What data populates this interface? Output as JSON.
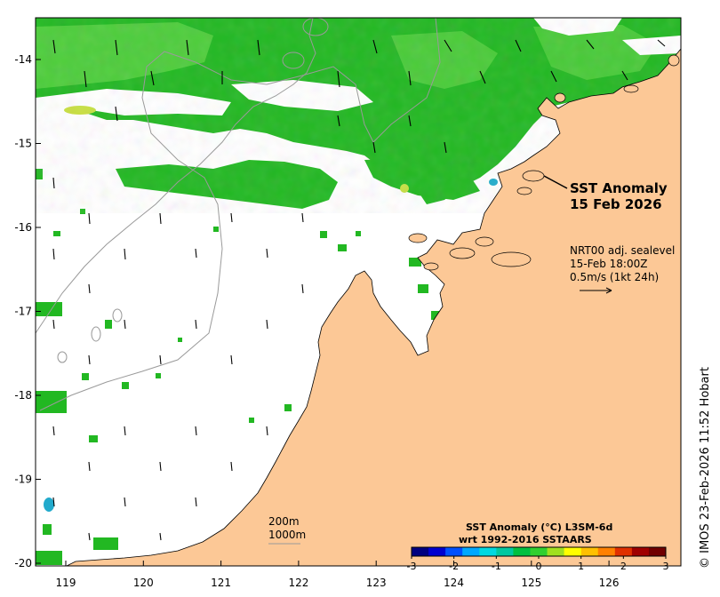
{
  "map": {
    "title_line1": "SST Anomaly",
    "title_line2": "15 Feb 2026",
    "current_info": {
      "line1": "NRT00 adj. sealevel",
      "line2": "15-Feb 18:00Z",
      "line3": "0.5m/s (1kt 24h)"
    },
    "isobaths": {
      "line1": "200m",
      "line2": "1000m"
    },
    "colorbar": {
      "title_line1": "SST Anomaly (°C) L3SM-6d",
      "title_line2": "wrt 1992-2016 SSTAARS",
      "ticks": [
        "-3",
        "-2",
        "-1",
        "0",
        "1",
        "2",
        "3"
      ],
      "range": [
        -3,
        3
      ],
      "colors": [
        "#000080",
        "#0000d0",
        "#0050ff",
        "#00a8ff",
        "#00d8e0",
        "#00c8a0",
        "#00c040",
        "#30d030",
        "#a0e020",
        "#ffff00",
        "#ffc000",
        "#ff8000",
        "#e03000",
        "#a00000",
        "#700000"
      ]
    },
    "credit": "© IMOS 23-Feb-2026 11:52 Hobart",
    "lon_ticks": [
      "119",
      "120",
      "121",
      "122",
      "123",
      "124",
      "125",
      "126"
    ],
    "lat_ticks": [
      "-14",
      "-15",
      "-16",
      "-17",
      "-18",
      "-19",
      "-20"
    ],
    "colors": {
      "land": "#fcc896",
      "anomaly_main": "#22b822",
      "anomaly_light": "#55d040",
      "anomaly_yellow": "#c8e040",
      "anomaly_blue": "#22aacc"
    }
  }
}
